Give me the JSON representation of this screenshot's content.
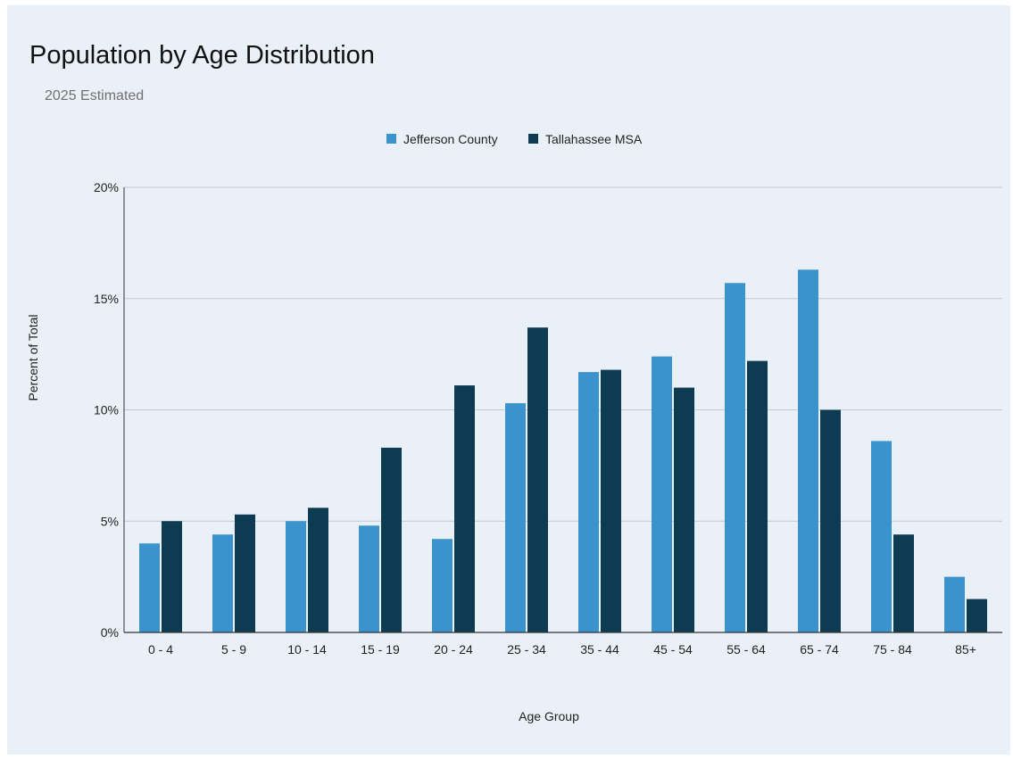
{
  "chart_data": {
    "type": "bar",
    "title": "Population by Age Distribution",
    "subtitle": "2025 Estimated",
    "xlabel": "Age Group",
    "ylabel": "Percent of Total",
    "ylim": [
      0,
      20
    ],
    "yticks": [
      0,
      5,
      10,
      15,
      20
    ],
    "ytick_labels": [
      "0%",
      "5%",
      "10%",
      "15%",
      "20%"
    ],
    "grid": true,
    "legend_position": "top-center",
    "categories": [
      "0 - 4",
      "5 - 9",
      "10 - 14",
      "15 - 19",
      "20 - 24",
      "25 - 34",
      "35 - 44",
      "45 - 54",
      "55 - 64",
      "65 - 74",
      "75 - 84",
      "85+"
    ],
    "series": [
      {
        "name": "Jefferson County",
        "color": "#3a93cd",
        "values": [
          4.0,
          4.4,
          5.0,
          4.8,
          4.2,
          10.3,
          11.7,
          12.4,
          15.7,
          16.3,
          8.6,
          2.5
        ]
      },
      {
        "name": "Tallahassee MSA",
        "color": "#0d3b52",
        "values": [
          5.0,
          5.3,
          5.6,
          8.3,
          11.1,
          13.7,
          11.8,
          11.0,
          12.2,
          10.0,
          4.4,
          1.5
        ]
      }
    ]
  }
}
